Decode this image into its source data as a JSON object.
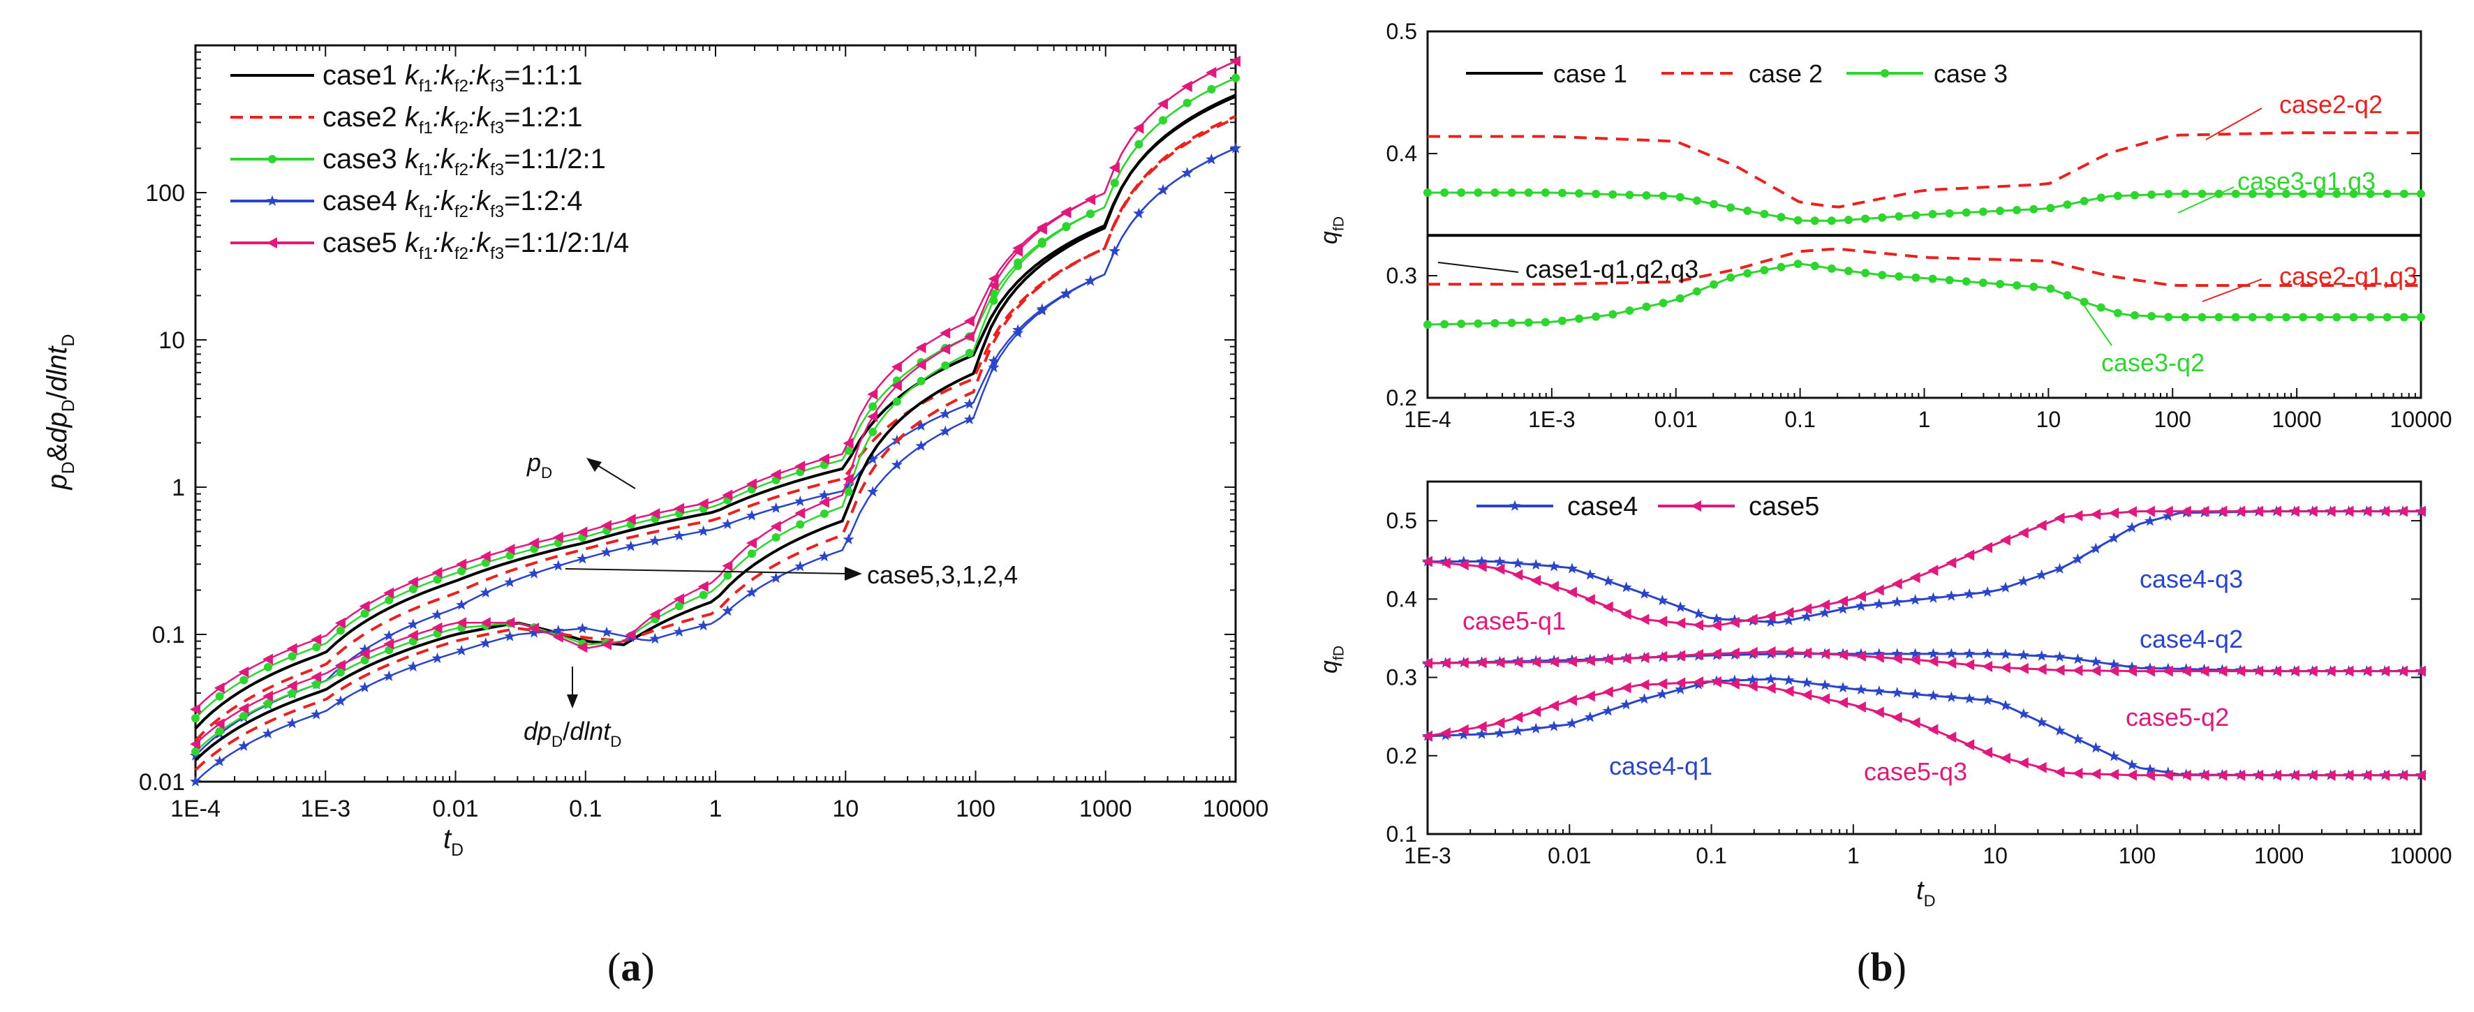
{
  "panel_labels": {
    "a": "a",
    "b": "b"
  },
  "chart_data": [
    {
      "id": "a",
      "type": "line",
      "scale": "log-log",
      "title": "",
      "xlabel": "t_D",
      "ylabel": "p_D&dp_D/dlnt_D",
      "xlim": [
        0.0001,
        10000
      ],
      "ylim": [
        0.01,
        1000
      ],
      "x_ticks": [
        "1E-4",
        "1E-3",
        "0.01",
        "0.1",
        "1",
        "10",
        "100",
        "1000",
        "10000"
      ],
      "y_ticks": [
        "0.01",
        "0.1",
        "1",
        "10",
        "100"
      ],
      "legend": [
        {
          "case": "case1",
          "ratio": "=1:1:1",
          "color": "#000000",
          "marker": "none",
          "dash": "solid"
        },
        {
          "case": "case2",
          "ratio": "=1:2:1",
          "color": "#e8231f",
          "marker": "none",
          "dash": "dashed"
        },
        {
          "case": "case3",
          "ratio": "=1:1/2:1",
          "color": "#2fd52f",
          "marker": "circle",
          "dash": "solid"
        },
        {
          "case": "case4",
          "ratio": "=1:2:4",
          "color": "#2b45c9",
          "marker": "star",
          "dash": "solid"
        },
        {
          "case": "case5",
          "ratio": "=1:1/2:1/4",
          "color": "#e0197d",
          "marker": "triangle",
          "dash": "solid"
        }
      ],
      "legend_k": [
        "k",
        "f1",
        ":k",
        "f2",
        ":k",
        "f3"
      ],
      "annotations": {
        "pd": "p_D",
        "deriv": "dp_D/dlnt_D",
        "order": "case5,3,1,2,4"
      },
      "series": [
        {
          "name": "case1 p_D",
          "x": [
            0.0001,
            0.001,
            0.01,
            0.1,
            1,
            10,
            100,
            1000,
            10000
          ],
          "y": [
            0.023,
            0.075,
            0.23,
            0.42,
            0.68,
            1.35,
            8,
            60,
            450
          ]
        },
        {
          "name": "case2 p_D",
          "x": [
            0.0001,
            0.001,
            0.01,
            0.1,
            1,
            10,
            100,
            1000,
            10000
          ],
          "y": [
            0.019,
            0.062,
            0.19,
            0.38,
            0.6,
            1.15,
            5.5,
            42,
            320
          ]
        },
        {
          "name": "case3 p_D",
          "x": [
            0.0001,
            0.001,
            0.01,
            0.1,
            1,
            10,
            100,
            1000,
            10000
          ],
          "y": [
            0.027,
            0.086,
            0.26,
            0.46,
            0.74,
            1.55,
            11,
            80,
            600
          ]
        },
        {
          "name": "case4 p_D",
          "x": [
            0.0001,
            0.001,
            0.01,
            0.1,
            1,
            10,
            100,
            1000,
            10000
          ],
          "y": [
            0.015,
            0.048,
            0.15,
            0.33,
            0.52,
            0.95,
            3.8,
            28,
            200
          ]
        },
        {
          "name": "case5 p_D",
          "x": [
            0.0001,
            0.001,
            0.01,
            0.1,
            1,
            10,
            100,
            1000,
            10000
          ],
          "y": [
            0.031,
            0.097,
            0.29,
            0.5,
            0.8,
            1.7,
            14,
            100,
            780
          ]
        },
        {
          "name": "case1 dp_D/dlnt_D",
          "x": [
            0.0001,
            0.001,
            0.01,
            0.03,
            0.1,
            0.2,
            1,
            10,
            100,
            1000,
            10000
          ],
          "y": [
            0.014,
            0.042,
            0.1,
            0.12,
            0.09,
            0.085,
            0.17,
            0.6,
            6,
            58,
            460
          ]
        },
        {
          "name": "case2 dp_D/dlnt_D",
          "x": [
            0.0001,
            0.001,
            0.01,
            0.03,
            0.1,
            0.2,
            1,
            10,
            100,
            1000,
            10000
          ],
          "y": [
            0.012,
            0.036,
            0.09,
            0.11,
            0.095,
            0.09,
            0.14,
            0.48,
            4.5,
            42,
            330
          ]
        },
        {
          "name": "case3 dp_D/dlnt_D",
          "x": [
            0.0001,
            0.001,
            0.01,
            0.03,
            0.1,
            0.2,
            1,
            10,
            100,
            1000,
            10000
          ],
          "y": [
            0.016,
            0.048,
            0.11,
            0.12,
            0.085,
            0.09,
            0.2,
            0.75,
            8.5,
            80,
            600
          ]
        },
        {
          "name": "case4 dp_D/dlnt_D",
          "x": [
            0.0001,
            0.001,
            0.01,
            0.03,
            0.1,
            0.3,
            1,
            10,
            100,
            1000,
            10000
          ],
          "y": [
            0.01,
            0.03,
            0.075,
            0.1,
            0.11,
            0.09,
            0.12,
            0.38,
            3,
            28,
            200
          ]
        },
        {
          "name": "case5 dp_D/dlnt_D",
          "x": [
            0.0001,
            0.001,
            0.01,
            0.03,
            0.1,
            0.2,
            1,
            10,
            100,
            1000,
            10000
          ],
          "y": [
            0.018,
            0.054,
            0.12,
            0.12,
            0.08,
            0.09,
            0.23,
            0.9,
            11,
            100,
            780
          ]
        }
      ]
    },
    {
      "id": "b-top",
      "type": "line",
      "scale": "semilog-x",
      "xlabel": "",
      "ylabel": "q_fD",
      "xlim": [
        0.0001,
        10000
      ],
      "ylim": [
        0.2,
        0.5
      ],
      "x_ticks": [
        "1E-4",
        "1E-3",
        "0.01",
        "0.1",
        "1",
        "10",
        "100",
        "1000",
        "10000"
      ],
      "y_ticks": [
        "0.2",
        "0.3",
        "0.4",
        "0.5"
      ],
      "legend": [
        {
          "case": "case 1",
          "color": "#000000",
          "marker": "none",
          "dash": "solid"
        },
        {
          "case": "case 2",
          "color": "#e8231f",
          "marker": "none",
          "dash": "dashed"
        },
        {
          "case": "case 3",
          "color": "#2fd52f",
          "marker": "circle",
          "dash": "solid"
        }
      ],
      "annotations": [
        "case2-q2",
        "case3-q1,q3",
        "case1-q1,q2,q3",
        "case2-q1,q3",
        "case3-q2"
      ],
      "series": [
        {
          "name": "case1-q1,q2,q3",
          "x": [
            0.0001,
            10000
          ],
          "y": [
            0.333,
            0.333
          ]
        },
        {
          "name": "case2-q2",
          "x": [
            0.0001,
            0.001,
            0.01,
            0.03,
            0.1,
            0.2,
            1,
            10,
            30,
            100,
            1000,
            10000
          ],
          "y": [
            0.414,
            0.414,
            0.41,
            0.39,
            0.36,
            0.356,
            0.37,
            0.375,
            0.4,
            0.415,
            0.417,
            0.417
          ]
        },
        {
          "name": "case2-q1,q3",
          "x": [
            0.0001,
            0.001,
            0.01,
            0.03,
            0.1,
            0.2,
            1,
            10,
            30,
            100,
            1000,
            10000
          ],
          "y": [
            0.293,
            0.293,
            0.295,
            0.305,
            0.32,
            0.322,
            0.315,
            0.312,
            0.3,
            0.292,
            0.292,
            0.292
          ]
        },
        {
          "name": "case3-q1,q3",
          "x": [
            0.0001,
            0.001,
            0.01,
            0.03,
            0.1,
            0.2,
            1,
            10,
            30,
            100,
            1000,
            10000
          ],
          "y": [
            0.368,
            0.368,
            0.365,
            0.355,
            0.345,
            0.345,
            0.35,
            0.355,
            0.365,
            0.367,
            0.367,
            0.367
          ]
        },
        {
          "name": "case3-q2",
          "x": [
            0.0001,
            0.001,
            0.003,
            0.01,
            0.03,
            0.1,
            0.2,
            0.5,
            1,
            10,
            20,
            40,
            100,
            1000,
            10000
          ],
          "y": [
            0.26,
            0.262,
            0.268,
            0.28,
            0.3,
            0.31,
            0.305,
            0.3,
            0.298,
            0.29,
            0.278,
            0.268,
            0.266,
            0.266,
            0.266
          ]
        }
      ]
    },
    {
      "id": "b-bottom",
      "type": "line",
      "scale": "semilog-x",
      "xlabel": "t_D",
      "ylabel": "q_fD",
      "xlim": [
        0.001,
        10000
      ],
      "ylim": [
        0.1,
        0.55
      ],
      "x_ticks": [
        "1E-3",
        "0.01",
        "0.1",
        "1",
        "10",
        "100",
        "1000",
        "10000"
      ],
      "y_ticks": [
        "0.1",
        "0.2",
        "0.3",
        "0.4",
        "0.5"
      ],
      "legend": [
        {
          "case": "case4",
          "color": "#2b45c9",
          "marker": "star",
          "dash": "solid"
        },
        {
          "case": "case5",
          "color": "#e0197d",
          "marker": "triangle",
          "dash": "solid"
        }
      ],
      "annotations": [
        "case4-q3",
        "case5-q1",
        "case4-q2",
        "case5-q2",
        "case4-q1",
        "case5-q3"
      ],
      "series": [
        {
          "name": "case4-q3",
          "x": [
            0.001,
            0.003,
            0.01,
            0.03,
            0.1,
            0.3,
            1,
            10,
            30,
            100,
            200,
            1000,
            10000
          ],
          "y": [
            0.448,
            0.448,
            0.44,
            0.41,
            0.375,
            0.37,
            0.39,
            0.41,
            0.44,
            0.495,
            0.51,
            0.512,
            0.512
          ]
        },
        {
          "name": "case5-q1",
          "x": [
            0.001,
            0.003,
            0.01,
            0.03,
            0.1,
            0.3,
            1,
            3,
            10,
            30,
            100,
            1000,
            10000
          ],
          "y": [
            0.448,
            0.44,
            0.41,
            0.375,
            0.365,
            0.38,
            0.4,
            0.43,
            0.47,
            0.505,
            0.512,
            0.512,
            0.512
          ]
        },
        {
          "name": "case4-q2",
          "x": [
            0.001,
            0.01,
            0.1,
            0.3,
            1,
            10,
            30,
            100,
            1000,
            10000
          ],
          "y": [
            0.318,
            0.322,
            0.328,
            0.33,
            0.33,
            0.33,
            0.326,
            0.312,
            0.308,
            0.308
          ]
        },
        {
          "name": "case5-q2",
          "x": [
            0.001,
            0.01,
            0.1,
            0.3,
            1,
            3,
            10,
            30,
            100,
            1000,
            10000
          ],
          "y": [
            0.318,
            0.32,
            0.33,
            0.333,
            0.328,
            0.322,
            0.313,
            0.309,
            0.308,
            0.308,
            0.308
          ]
        },
        {
          "name": "case4-q1",
          "x": [
            0.001,
            0.003,
            0.01,
            0.03,
            0.1,
            0.3,
            1,
            10,
            30,
            100,
            200,
            1000,
            10000
          ],
          "y": [
            0.225,
            0.228,
            0.24,
            0.27,
            0.295,
            0.298,
            0.285,
            0.27,
            0.23,
            0.185,
            0.176,
            0.175,
            0.175
          ]
        },
        {
          "name": "case5-q3",
          "x": [
            0.001,
            0.003,
            0.01,
            0.03,
            0.1,
            0.3,
            1,
            3,
            10,
            30,
            100,
            1000,
            10000
          ],
          "y": [
            0.225,
            0.24,
            0.27,
            0.29,
            0.295,
            0.285,
            0.265,
            0.24,
            0.2,
            0.178,
            0.175,
            0.175,
            0.175
          ]
        }
      ]
    }
  ]
}
